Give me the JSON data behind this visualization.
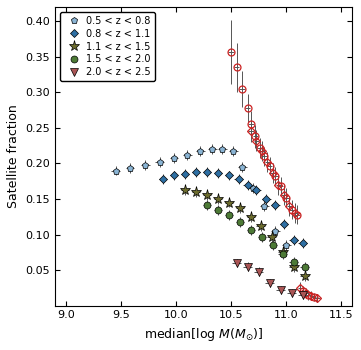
{
  "xlabel": "median[log $M(M_{\\odot})$]",
  "ylabel": "Satellite fraction",
  "xlim": [
    8.9,
    11.6
  ],
  "ylim": [
    0.0,
    0.42
  ],
  "yticks": [
    0.05,
    0.1,
    0.15,
    0.2,
    0.25,
    0.3,
    0.35,
    0.4
  ],
  "xticks": [
    9.0,
    9.5,
    10.0,
    10.5,
    11.0,
    11.5
  ],
  "series": [
    {
      "label": "0.5 < z < 0.8",
      "marker": "p",
      "color": "#8ab4d4",
      "x": [
        9.45,
        9.58,
        9.72,
        9.85,
        9.98,
        10.1,
        10.22,
        10.33,
        10.42,
        10.52,
        10.6,
        10.7,
        10.8,
        10.9,
        11.0
      ],
      "y": [
        0.19,
        0.193,
        0.198,
        0.202,
        0.207,
        0.212,
        0.218,
        0.22,
        0.22,
        0.218,
        0.195,
        0.165,
        0.14,
        0.105,
        0.085
      ],
      "xerr": [
        0.04,
        0.04,
        0.04,
        0.04,
        0.04,
        0.04,
        0.04,
        0.04,
        0.04,
        0.04,
        0.04,
        0.04,
        0.04,
        0.04,
        0.04
      ],
      "yerr": [
        0.007,
        0.007,
        0.007,
        0.007,
        0.007,
        0.007,
        0.007,
        0.007,
        0.007,
        0.007,
        0.007,
        0.007,
        0.007,
        0.007,
        0.007
      ]
    },
    {
      "label": "0.8 < z < 1.1",
      "marker": "D",
      "color": "#2e6fa3",
      "x": [
        9.88,
        9.98,
        10.08,
        10.18,
        10.28,
        10.38,
        10.48,
        10.57,
        10.65,
        10.73,
        10.82,
        10.9,
        10.98,
        11.07,
        11.15
      ],
      "y": [
        0.178,
        0.183,
        0.185,
        0.188,
        0.188,
        0.187,
        0.183,
        0.178,
        0.17,
        0.162,
        0.15,
        0.142,
        0.115,
        0.092,
        0.088
      ],
      "xerr": [
        0.04,
        0.04,
        0.04,
        0.04,
        0.04,
        0.04,
        0.04,
        0.04,
        0.04,
        0.04,
        0.04,
        0.04,
        0.04,
        0.04,
        0.04
      ],
      "yerr": [
        0.007,
        0.007,
        0.007,
        0.007,
        0.007,
        0.007,
        0.007,
        0.007,
        0.007,
        0.007,
        0.007,
        0.007,
        0.007,
        0.007,
        0.007
      ]
    },
    {
      "label": "1.1 < z < 1.5",
      "marker": "*",
      "color": "#6b6b2e",
      "x": [
        10.08,
        10.18,
        10.28,
        10.38,
        10.48,
        10.58,
        10.68,
        10.77,
        10.87,
        10.97,
        11.07,
        11.17
      ],
      "y": [
        0.163,
        0.16,
        0.155,
        0.15,
        0.145,
        0.137,
        0.125,
        0.112,
        0.097,
        0.075,
        0.055,
        0.042
      ],
      "xerr": [
        0.04,
        0.04,
        0.04,
        0.04,
        0.04,
        0.04,
        0.04,
        0.04,
        0.04,
        0.04,
        0.04,
        0.04
      ],
      "yerr": [
        0.007,
        0.007,
        0.007,
        0.007,
        0.007,
        0.007,
        0.007,
        0.007,
        0.007,
        0.007,
        0.007,
        0.007
      ]
    },
    {
      "label": "1.5 < z < 2.0",
      "marker": "o",
      "color": "#4d7a36",
      "x": [
        10.28,
        10.38,
        10.48,
        10.58,
        10.68,
        10.78,
        10.88,
        10.97,
        11.07,
        11.17
      ],
      "y": [
        0.142,
        0.135,
        0.128,
        0.118,
        0.107,
        0.097,
        0.085,
        0.072,
        0.062,
        0.055
      ],
      "xerr": [
        0.04,
        0.04,
        0.04,
        0.04,
        0.04,
        0.04,
        0.04,
        0.04,
        0.04,
        0.04
      ],
      "yerr": [
        0.007,
        0.007,
        0.007,
        0.007,
        0.007,
        0.007,
        0.007,
        0.007,
        0.007,
        0.007
      ]
    },
    {
      "label": "2.0 < z < 2.5",
      "marker": "v",
      "color": "#aa5555",
      "x": [
        10.55,
        10.65,
        10.75,
        10.85,
        10.95,
        11.05,
        11.15
      ],
      "y": [
        0.06,
        0.055,
        0.048,
        0.032,
        0.022,
        0.018,
        0.015
      ],
      "xerr": [
        0.04,
        0.04,
        0.04,
        0.04,
        0.04,
        0.04,
        0.04
      ],
      "yerr": [
        0.006,
        0.006,
        0.006,
        0.006,
        0.006,
        0.006,
        0.006
      ]
    }
  ],
  "open_circles": {
    "marker": "o",
    "color": "#cc2222",
    "x": [
      10.5,
      10.55,
      10.6,
      10.65,
      10.68,
      10.72,
      10.76,
      10.8,
      10.85,
      10.9,
      10.95,
      11.0,
      11.05,
      11.1,
      11.15,
      11.2,
      11.25
    ],
    "y": [
      0.356,
      0.335,
      0.305,
      0.278,
      0.255,
      0.238,
      0.222,
      0.21,
      0.196,
      0.182,
      0.168,
      0.152,
      0.135,
      0.128,
      0.02,
      0.015,
      0.012
    ],
    "xerr": [
      0.025,
      0.025,
      0.025,
      0.025,
      0.025,
      0.025,
      0.025,
      0.025,
      0.025,
      0.025,
      0.025,
      0.025,
      0.025,
      0.025,
      0.025,
      0.025,
      0.025
    ],
    "yerr": [
      0.045,
      0.035,
      0.025,
      0.02,
      0.018,
      0.016,
      0.014,
      0.013,
      0.013,
      0.013,
      0.013,
      0.013,
      0.013,
      0.013,
      0.008,
      0.007,
      0.006
    ]
  },
  "open_diamonds": {
    "marker": "D",
    "color": "#cc2222",
    "x": [
      10.68,
      10.73,
      10.78,
      10.83,
      10.88,
      10.93,
      10.98,
      11.03,
      11.08,
      11.13,
      11.18,
      11.23,
      11.28
    ],
    "y": [
      0.245,
      0.232,
      0.218,
      0.202,
      0.186,
      0.17,
      0.155,
      0.14,
      0.13,
      0.025,
      0.018,
      0.014,
      0.011
    ],
    "xerr": [
      0.025,
      0.025,
      0.025,
      0.025,
      0.025,
      0.025,
      0.025,
      0.025,
      0.025,
      0.025,
      0.025,
      0.025,
      0.025
    ],
    "yerr": [
      0.015,
      0.015,
      0.014,
      0.014,
      0.014,
      0.014,
      0.014,
      0.014,
      0.014,
      0.008,
      0.007,
      0.006,
      0.006
    ]
  }
}
